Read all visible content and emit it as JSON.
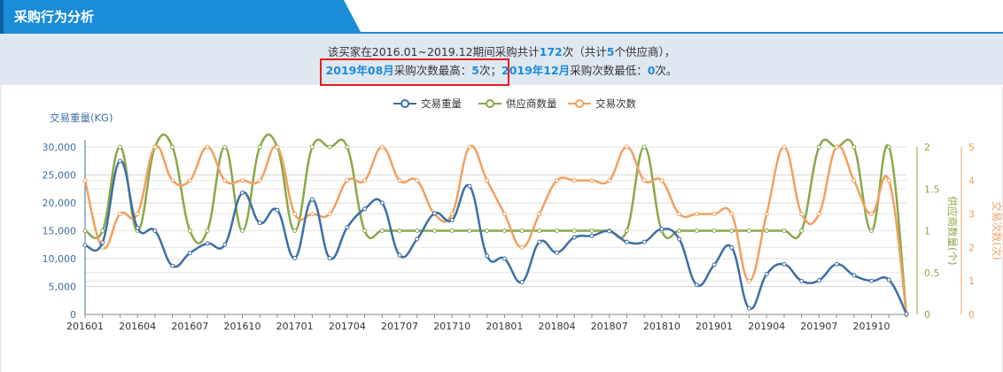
{
  "header": {
    "title": "采购行为分析"
  },
  "summary": {
    "line1_a": "该买家在2016.01~2019.12期间采购共计",
    "line1_total": "172",
    "line1_b": "次（共计",
    "line1_suppliers": "5",
    "line1_c": "个供应商），",
    "line2_max_month": "2019年08月",
    "line2_b": "采购次数最高：",
    "line2_max_value": "5",
    "line2_c": "次；",
    "line2_min_month": "2019年12月",
    "line2_d": "采购次数最低：",
    "line2_min_value": "0",
    "line2_e": "次。"
  },
  "colors": {
    "weight": "#3d6fa5",
    "suppliers": "#8aa84a",
    "count": "#f0a060",
    "accent": "#1a8cd8",
    "box": "#e02020"
  },
  "chart_data": {
    "type": "line",
    "x": [
      "201601",
      "201602",
      "201603",
      "201604",
      "201605",
      "201606",
      "201607",
      "201608",
      "201609",
      "201610",
      "201611",
      "201612",
      "201701",
      "201702",
      "201703",
      "201704",
      "201705",
      "201706",
      "201707",
      "201708",
      "201709",
      "201710",
      "201711",
      "201712",
      "201801",
      "201802",
      "201803",
      "201804",
      "201805",
      "201806",
      "201807",
      "201808",
      "201809",
      "201810",
      "201811",
      "201812",
      "201901",
      "201902",
      "201903",
      "201904",
      "201905",
      "201906",
      "201907",
      "201908",
      "201909",
      "201910",
      "201911",
      "201912"
    ],
    "xticks": [
      "201601",
      "201604",
      "201607",
      "201610",
      "201701",
      "201704",
      "201707",
      "201710",
      "201801",
      "201804",
      "201807",
      "201810",
      "201901",
      "201904",
      "201907",
      "201910"
    ],
    "yleft": {
      "label": "交易重量(KG)",
      "ticks": [
        "0",
        "5,000",
        "10,000",
        "15,000",
        "20,000",
        "25,000",
        "30,000"
      ],
      "range": [
        0,
        30000
      ]
    },
    "yright1": {
      "label": "供应商数量(个)",
      "ticks": [
        "0",
        "0.5",
        "1",
        "1.5",
        "2"
      ],
      "range": [
        0,
        2
      ]
    },
    "yright2": {
      "label": "交易次数(次)",
      "ticks": [
        "0",
        "1",
        "2",
        "3",
        "4",
        "5"
      ],
      "range": [
        0,
        5
      ]
    },
    "legend": [
      "交易重量",
      "供应商数量",
      "交易次数"
    ],
    "series": [
      {
        "name": "交易重量",
        "axis": "left",
        "values": [
          12400,
          12900,
          27500,
          15500,
          15000,
          8700,
          11000,
          12700,
          12500,
          21800,
          16400,
          18700,
          10100,
          20600,
          10100,
          15600,
          18900,
          20000,
          10600,
          13500,
          18100,
          16900,
          23000,
          10500,
          10000,
          5800,
          13000,
          11100,
          13800,
          14100,
          14900,
          13000,
          13000,
          15300,
          13500,
          5300,
          8900,
          12000,
          1100,
          7200,
          9000,
          6000,
          6100,
          9000,
          7000,
          6000,
          6200,
          100
        ]
      },
      {
        "name": "供应商数量",
        "axis": "right1",
        "values": [
          1,
          1,
          2,
          1,
          2,
          2,
          1,
          1,
          2,
          1,
          2,
          2,
          1,
          2,
          2,
          2,
          1,
          1,
          1,
          1,
          1,
          1,
          1,
          1,
          1,
          1,
          1,
          1,
          1,
          1,
          1,
          1,
          2,
          1,
          1,
          1,
          1,
          1,
          1,
          1,
          1,
          1,
          2,
          2,
          2,
          1,
          2,
          0
        ]
      },
      {
        "name": "交易次数",
        "axis": "right2",
        "values": [
          4,
          2,
          3,
          3,
          5,
          4,
          4,
          5,
          4,
          4,
          4,
          5,
          3,
          3,
          3,
          4,
          4,
          5,
          4,
          4,
          3,
          3,
          5,
          4,
          3,
          2,
          3,
          4,
          4,
          4,
          4,
          5,
          4,
          4,
          3,
          3,
          3,
          3,
          1,
          3,
          5,
          3,
          3,
          5,
          4,
          3,
          4,
          0
        ]
      }
    ]
  }
}
